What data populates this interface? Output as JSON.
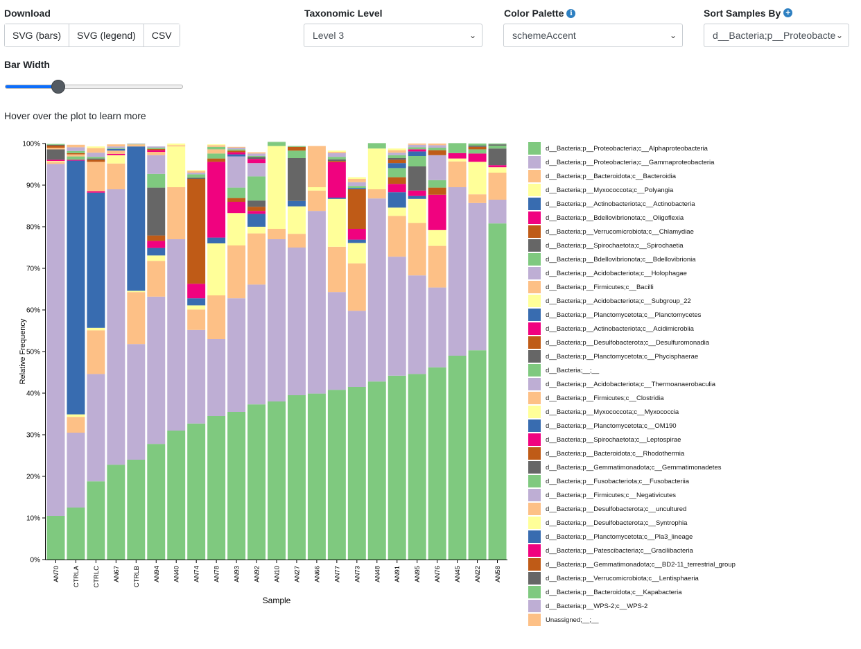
{
  "controls": {
    "download_label": "Download",
    "download_buttons": [
      "SVG (bars)",
      "SVG (legend)",
      "CSV"
    ],
    "taxonomic_level_label": "Taxonomic Level",
    "taxonomic_level_value": "Level 3",
    "color_palette_label": "Color Palette",
    "color_palette_value": "schemeAccent",
    "sort_label": "Sort Samples By",
    "sort_value": "d__Bacteria;p__Proteobacte",
    "bar_width_label": "Bar Width",
    "bar_width_value": 0.25,
    "hint": "Hover over the plot to learn more",
    "icons": {
      "palette_info": "info-icon",
      "sort_add": "plus-icon",
      "select_arrow": "chevron-down-icon"
    }
  },
  "chart_data": {
    "type": "bar",
    "stacked": true,
    "xlabel": "Sample",
    "ylabel": "Relative Frequency",
    "ylim": [
      0,
      100
    ],
    "yticks": [
      "0%",
      "10%",
      "20%",
      "30%",
      "40%",
      "50%",
      "60%",
      "70%",
      "80%",
      "90%",
      "100%"
    ],
    "categories": [
      "AN70",
      "CTRLA",
      "CTRLC",
      "AN67",
      "CTRLB",
      "AN94",
      "AN40",
      "AN74",
      "AN78",
      "AN93",
      "AN92",
      "AN10",
      "AN27",
      "AN66",
      "AN77",
      "AN73",
      "AN48",
      "AN91",
      "AN95",
      "AN76",
      "AN45",
      "AN22",
      "AN58"
    ],
    "palette": [
      "#7fc97f",
      "#beaed4",
      "#fdc086",
      "#ffff99",
      "#386cb0",
      "#f0027f",
      "#bf5b17",
      "#666666"
    ],
    "series": [
      {
        "name": "d__Bacteria;p__Proteobacteria;c__Alphaproteobacteria",
        "values": [
          10.5,
          12.5,
          18.8,
          22.8,
          24.0,
          27.8,
          31.0,
          32.7,
          34.5,
          35.5,
          37.3,
          38.0,
          39.5,
          39.9,
          40.8,
          41.5,
          42.8,
          44.2,
          44.6,
          46.2,
          49.0,
          50.3,
          80.8
        ]
      },
      {
        "name": "d__Bacteria;p__Proteobacteria;c__Gammaproteobacteria",
        "values": [
          84.6,
          18.0,
          25.8,
          66.2,
          27.8,
          35.4,
          46.0,
          22.5,
          18.5,
          27.3,
          28.8,
          39.0,
          35.5,
          43.9,
          23.5,
          18.3,
          44.0,
          28.6,
          23.7,
          19.2,
          40.5,
          35.4,
          5.7
        ]
      },
      {
        "name": "d__Bacteria;p__Bacteroidota;c__Bacteroidia",
        "values": [
          0.4,
          3.8,
          10.5,
          6.2,
          12.5,
          8.6,
          12.5,
          4.9,
          10.5,
          12.7,
          12.3,
          2.5,
          3.3,
          4.9,
          10.9,
          11.4,
          2.2,
          9.8,
          12.6,
          10.0,
          6.2,
          2.1,
          6.5
        ]
      },
      {
        "name": "d__Bacteria;p__Myxococcota;c__Polyangia",
        "values": [
          0.3,
          0.6,
          0.6,
          2.0,
          0.3,
          1.3,
          9.8,
          1.0,
          12.5,
          7.8,
          1.6,
          19.9,
          6.6,
          0.8,
          11.5,
          4.9,
          9.8,
          2.0,
          5.8,
          3.8,
          0.7,
          7.8,
          1.3
        ]
      },
      {
        "name": "d__Bacteria;p__Actinobacteriota;c__Actinobacteria",
        "values": [
          0,
          61.0,
          32.5,
          0,
          34.7,
          1.8,
          0,
          1.7,
          1.4,
          0,
          3.1,
          0,
          1.3,
          0,
          0.3,
          0.8,
          0,
          3.7,
          0.7,
          0,
          0,
          0,
          0
        ]
      },
      {
        "name": "d__Bacteria;p__Bdellovibrionota;c__Oligoflexia",
        "values": [
          0.3,
          0.2,
          0.3,
          0.3,
          0,
          1.7,
          0,
          3.5,
          18.2,
          2.7,
          0.7,
          0,
          0,
          0,
          8.5,
          2.6,
          0,
          2.0,
          1.3,
          8.5,
          1.3,
          2.0,
          0.5
        ]
      },
      {
        "name": "d__Bacteria;p__Verrucomicrobiota;c__Chlamydiae",
        "values": [
          0,
          0,
          0,
          0,
          0,
          1.3,
          0,
          25.2,
          0.8,
          0.9,
          1.0,
          0,
          0,
          0,
          0,
          9.5,
          0,
          1.6,
          0,
          1.7,
          0,
          0,
          0
        ]
      },
      {
        "name": "d__Bacteria;p__Spirochaetota;c__Spirochaetia",
        "values": [
          2.5,
          0,
          0,
          0,
          0,
          11.5,
          0,
          0,
          0,
          0,
          1.5,
          0,
          10.3,
          0,
          0,
          0,
          0,
          0,
          5.8,
          0,
          0,
          0,
          4.0
        ]
      },
      {
        "name": "d__Bacteria;p__Bdellovibrionota;c__Bdellovibrionia",
        "values": [
          0,
          0.8,
          0,
          0,
          0,
          3.3,
          0,
          0,
          1.2,
          2.5,
          5.8,
          0.8,
          1.8,
          0,
          0,
          0,
          1.3,
          2.2,
          2.5,
          1.8,
          1.8,
          1.0,
          0.7
        ]
      },
      {
        "name": "d__Bacteria;p__Acidobacteriota;c__Holophagae",
        "values": [
          0,
          0,
          0,
          0,
          0,
          4.5,
          0,
          0,
          0,
          7.5,
          3.2,
          0,
          0,
          0,
          0,
          0,
          0,
          0,
          0,
          6.0,
          0,
          0,
          0
        ]
      },
      {
        "name": "d__Bacteria;p__Firmicutes;c__Bacilli",
        "values": [
          0.4,
          0.5,
          7.1,
          0.8,
          0.5,
          0.8,
          0.3,
          0,
          1.0,
          0,
          0,
          0,
          0,
          9.5,
          0,
          0,
          0,
          0,
          0,
          0,
          0,
          0,
          0
        ]
      },
      {
        "name": "d__Bacteria;p__Acidobacteriota;c__Subgroup_22",
        "values": [
          0,
          0,
          0,
          0,
          0,
          0,
          0.4,
          0,
          0,
          0,
          0,
          0,
          0,
          0,
          0,
          0,
          0,
          0,
          0,
          0,
          0,
          0,
          0
        ]
      },
      {
        "name": "d__Bacteria;p__Planctomycetota;c__Planctomycetes",
        "values": [
          0,
          0,
          0,
          0.4,
          0,
          0,
          0,
          0,
          0,
          0.5,
          0,
          0,
          0,
          0,
          0,
          0.3,
          0,
          1.2,
          1.1,
          0,
          0,
          0,
          0
        ]
      },
      {
        "name": "d__Bacteria;p__Actinobacteriota;c__Acidimicrobiia",
        "values": [
          0,
          0,
          0,
          0,
          0,
          0.4,
          0,
          0,
          0,
          0.5,
          1.0,
          0,
          0,
          0,
          0,
          0,
          0,
          0,
          0.5,
          0,
          0,
          0,
          0
        ]
      },
      {
        "name": "d__Bacteria;p__Desulfobacterota;c__Desulfuromonadia",
        "values": [
          0.5,
          0.3,
          0.5,
          0,
          0,
          0.3,
          0,
          0,
          0,
          0.4,
          0,
          0,
          0.9,
          0,
          0.3,
          0,
          0,
          0.8,
          0,
          1.2,
          0,
          0.6,
          0
        ]
      },
      {
        "name": "d__Bacteria;p__Planctomycetota;c__Phycisphaerae",
        "values": [
          0.2,
          0,
          0.3,
          0,
          0,
          0,
          0,
          0.3,
          0,
          0,
          0.5,
          0,
          0,
          0,
          0.4,
          0,
          0,
          0.4,
          0,
          0,
          0,
          0.3,
          0.3
        ]
      },
      {
        "name": "d__Bacteria;__;__",
        "values": [
          0.2,
          0.5,
          0.4,
          0.2,
          0.1,
          0.3,
          0,
          0.8,
          0.6,
          0.3,
          0.2,
          0.2,
          0.2,
          0,
          0.6,
          0.5,
          0,
          0.7,
          0.5,
          0.6,
          0.6,
          0.5,
          0.2
        ]
      },
      {
        "name": "d__Bacteria;p__Acidobacteriota;c__Thermoanaerobaculia",
        "values": [
          0,
          0.9,
          1.0,
          0.4,
          0.1,
          0.3,
          0,
          0.4,
          0,
          0.4,
          0.6,
          0,
          0,
          0,
          0.9,
          0.9,
          0,
          0.6,
          0.6,
          0.6,
          0,
          0,
          0
        ]
      },
      {
        "name": "d__Bacteria;p__Firmicutes;c__Clostridia",
        "values": [
          0,
          0.6,
          1.1,
          0.5,
          0,
          0,
          0,
          0.4,
          0.4,
          0.2,
          0.3,
          0,
          0,
          0.4,
          0.3,
          0.8,
          0,
          0.6,
          0.3,
          0.4,
          0,
          0,
          0
        ]
      },
      {
        "name": "d__Bacteria;p__Myxococcota;c__Myxococcia",
        "values": [
          0,
          0,
          0.4,
          0,
          0,
          0,
          0,
          0.2,
          0.2,
          0,
          0,
          0,
          0,
          0,
          0.3,
          0.4,
          0,
          0.4,
          0,
          0,
          0,
          0,
          0
        ]
      },
      {
        "name": "d__Bacteria;p__Planctomycetota;c__OM190",
        "values": [
          0,
          0,
          0,
          0,
          0,
          0,
          0,
          0,
          0,
          0,
          0,
          0,
          0,
          0,
          0,
          0,
          0,
          0,
          0,
          0,
          0,
          0,
          0
        ]
      },
      {
        "name": "d__Bacteria;p__Spirochaetota;c__Leptospirae",
        "values": [
          0,
          0,
          0,
          0,
          0,
          0,
          0,
          0,
          0,
          0,
          0,
          0,
          0,
          0,
          0,
          0,
          0,
          0,
          0,
          0,
          0,
          0,
          0
        ]
      },
      {
        "name": "d__Bacteria;p__Bacteroidota;c__Rhodothermia",
        "values": [
          0,
          0,
          0,
          0,
          0,
          0,
          0,
          0,
          0,
          0,
          0,
          0,
          0,
          0,
          0,
          0,
          0,
          0,
          0,
          0,
          0,
          0,
          0
        ]
      },
      {
        "name": "d__Bacteria;p__Gemmatimonadota;c__Gemmatimonadetes",
        "values": [
          0,
          0,
          0,
          0,
          0,
          0,
          0,
          0,
          0,
          0,
          0,
          0,
          0,
          0,
          0,
          0,
          0,
          0,
          0,
          0,
          0,
          0,
          0
        ]
      },
      {
        "name": "d__Bacteria;p__Fusobacteriota;c__Fusobacteriia",
        "values": [
          0,
          0,
          0,
          0,
          0,
          0,
          0,
          0,
          0,
          0,
          0,
          0,
          0,
          0,
          0,
          0,
          0,
          0,
          0,
          0,
          0,
          0,
          0
        ]
      },
      {
        "name": "d__Bacteria;p__Firmicutes;c__Negativicutes",
        "values": [
          0,
          0,
          0,
          0,
          0,
          0,
          0,
          0,
          0,
          0,
          0,
          0,
          0,
          0,
          0,
          0,
          0,
          0,
          0,
          0,
          0,
          0,
          0
        ]
      },
      {
        "name": "d__Bacteria;p__Desulfobacterota;c__uncultured",
        "values": [
          0,
          0,
          0,
          0,
          0,
          0,
          0,
          0,
          0,
          0,
          0,
          0,
          0,
          0,
          0,
          0,
          0,
          0,
          0,
          0,
          0,
          0,
          0
        ]
      },
      {
        "name": "d__Bacteria;p__Desulfobacterota;c__Syntrophia",
        "values": [
          0,
          0,
          0,
          0,
          0,
          0,
          0,
          0,
          0,
          0,
          0,
          0,
          0,
          0,
          0,
          0,
          0,
          0,
          0,
          0,
          0,
          0,
          0
        ]
      },
      {
        "name": "d__Bacteria;p__Planctomycetota;c__Pla3_lineage",
        "values": [
          0,
          0,
          0,
          0,
          0,
          0,
          0,
          0,
          0,
          0,
          0,
          0,
          0,
          0,
          0,
          0,
          0,
          0,
          0,
          0,
          0,
          0,
          0
        ]
      },
      {
        "name": "d__Bacteria;p__Patescibacteria;c__Gracilibacteria",
        "values": [
          0,
          0,
          0,
          0,
          0,
          0,
          0,
          0,
          0,
          0,
          0,
          0,
          0,
          0,
          0,
          0,
          0,
          0,
          0,
          0,
          0,
          0,
          0
        ]
      },
      {
        "name": "d__Bacteria;p__Gemmatimonadota;c__BD2-11_terrestrial_group",
        "values": [
          0,
          0,
          0,
          0,
          0,
          0,
          0,
          0,
          0,
          0,
          0,
          0,
          0,
          0,
          0,
          0,
          0,
          0,
          0,
          0,
          0,
          0,
          0
        ]
      },
      {
        "name": "d__Bacteria;p__Verrucomicrobiota;c__Lentisphaeria",
        "values": [
          0,
          0,
          0,
          0,
          0,
          0,
          0,
          0,
          0,
          0,
          0,
          0,
          0,
          0,
          0,
          0,
          0,
          0,
          0,
          0,
          0,
          0,
          0
        ]
      },
      {
        "name": "d__Bacteria;p__Bacteroidota;c__Kapabacteria",
        "values": [
          0,
          0,
          0,
          0,
          0,
          0,
          0,
          0,
          0,
          0,
          0,
          0,
          0,
          0,
          0,
          0,
          0,
          0,
          0,
          0,
          0,
          0,
          0
        ]
      },
      {
        "name": "d__Bacteria;p__WPS-2;c__WPS-2",
        "values": [
          0,
          0,
          0,
          0,
          0,
          0,
          0,
          0,
          0,
          0,
          0,
          0,
          0,
          0,
          0,
          0,
          0,
          0,
          0,
          0,
          0,
          0,
          0
        ]
      },
      {
        "name": "Unassigned;__;__",
        "values": [
          0,
          0,
          0,
          0,
          0,
          0,
          0,
          0,
          0,
          0,
          0,
          0,
          0,
          0,
          0,
          0,
          0,
          0,
          0,
          0,
          0,
          0,
          0
        ]
      }
    ]
  }
}
